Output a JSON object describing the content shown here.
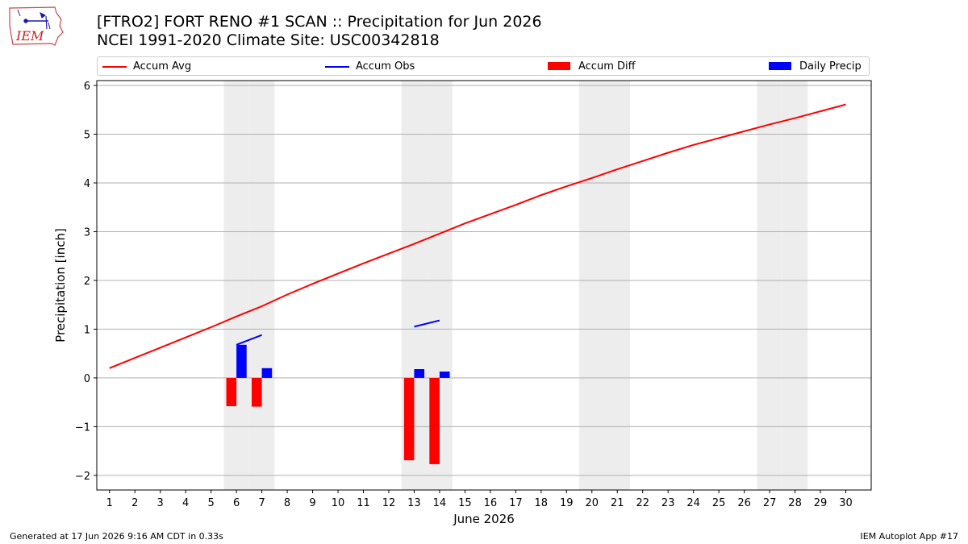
{
  "logo": {
    "text": "IEM",
    "icon": "iem-iowa-weather-logo"
  },
  "title": {
    "line1": "[FTRO2] FORT RENO #1 SCAN :: Precipitation for Jun 2026",
    "line2": "NCEI 1991-2020 Climate Site: USC00342818"
  },
  "footer": {
    "left": "Generated at 17 Jun 2026 9:16 AM CDT in 0.33s",
    "right": "IEM Autoplot App #17"
  },
  "colors": {
    "accum_avg": "#ff0000",
    "accum_obs": "#0000ff",
    "accum_diff": "#ff0000",
    "daily_precip": "#0000ff",
    "weekend_shade": "#ededed",
    "grid": "#b0b0b0"
  },
  "chart_data": {
    "type": "bar",
    "title": "[FTRO2] FORT RENO #1 SCAN :: Precipitation for Jun 2026",
    "subtitle": "NCEI 1991-2020 Climate Site: USC00342818",
    "xlabel": "June 2026",
    "ylabel": "Precipitation [inch]",
    "xlim": [
      0.5,
      31.0
    ],
    "ylim": [
      -2.3,
      6.1
    ],
    "x_ticks": [
      1,
      2,
      3,
      4,
      5,
      6,
      7,
      8,
      9,
      10,
      11,
      12,
      13,
      14,
      15,
      16,
      17,
      18,
      19,
      20,
      21,
      22,
      23,
      24,
      25,
      26,
      27,
      28,
      29,
      30
    ],
    "y_ticks": [
      -2,
      -1,
      0,
      1,
      2,
      3,
      4,
      5,
      6
    ],
    "y_tick_labels": [
      "−2",
      "−1",
      "0",
      "1",
      "2",
      "3",
      "4",
      "5",
      "6"
    ],
    "grid": "horizontal",
    "legend_placement": "top",
    "weekend_days": [
      6,
      7,
      13,
      14,
      20,
      21,
      27,
      28
    ],
    "series": [
      {
        "name": "Accum Avg",
        "kind": "line",
        "x": [
          1,
          2,
          3,
          4,
          5,
          6,
          7,
          8,
          9,
          10,
          11,
          12,
          13,
          14,
          15,
          16,
          17,
          18,
          19,
          20,
          21,
          22,
          23,
          24,
          25,
          26,
          27,
          28,
          29,
          30
        ],
        "values": [
          0.2,
          0.41,
          0.62,
          0.83,
          1.04,
          1.26,
          1.47,
          1.71,
          1.93,
          2.14,
          2.35,
          2.55,
          2.75,
          2.96,
          3.17,
          3.36,
          3.55,
          3.75,
          3.93,
          4.1,
          4.28,
          4.45,
          4.62,
          4.78,
          4.92,
          5.06,
          5.2,
          5.33,
          5.47,
          5.61
        ]
      },
      {
        "name": "Accum Obs",
        "kind": "line",
        "segments": [
          {
            "x": [
              6,
              7
            ],
            "values": [
              0.68,
              0.88
            ]
          },
          {
            "x": [
              13,
              14
            ],
            "values": [
              1.05,
              1.18
            ]
          }
        ]
      },
      {
        "name": "Accum Diff",
        "kind": "bar",
        "x": [
          6,
          7,
          13,
          14
        ],
        "values": [
          -0.58,
          -0.59,
          -1.69,
          -1.77
        ]
      },
      {
        "name": "Daily Precip",
        "kind": "bar",
        "x": [
          6,
          7,
          13,
          14
        ],
        "values": [
          0.68,
          0.2,
          0.18,
          0.13
        ]
      }
    ]
  }
}
